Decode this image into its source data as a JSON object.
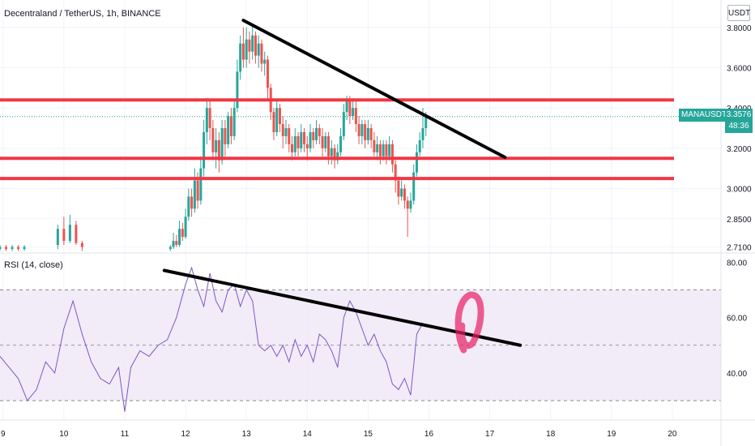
{
  "header": {
    "pair_title": "Decentraland / TetherUS, 1h, BINANCE",
    "currency": "USDT"
  },
  "rsi_panel": {
    "title": "RSI (14, close)"
  },
  "price_tag": {
    "ticker": "MANAUSDT",
    "price": "3.3576",
    "countdown": "48:36"
  },
  "colors": {
    "bull": "#26a69a",
    "bear": "#ef5350",
    "level_line": "#f23645",
    "trendline": "#000000",
    "rsi_line": "#7e57c2",
    "rsi_band": "#ede7f6",
    "marker": "#e91e63"
  },
  "chart_data": [
    {
      "type": "candlestick",
      "title": "Decentraland / TetherUS, 1h, BINANCE",
      "x_ticks": [
        "9",
        "10",
        "11",
        "12",
        "13",
        "14",
        "15",
        "16",
        "17",
        "18",
        "19",
        "20"
      ],
      "y_ticks": [
        "2.7100",
        "2.8500",
        "3.0000",
        "3.2000",
        "3.4000",
        "3.6000",
        "3.8000"
      ],
      "ylim": [
        2.68,
        3.92
      ],
      "xlim": [
        8.95,
        20.8
      ],
      "current_price": 3.3576,
      "support_resistance_levels": [
        3.44,
        3.15,
        3.05
      ],
      "trendline": {
        "from": [
          12.95,
          3.835
        ],
        "to": [
          17.25,
          3.155
        ]
      },
      "candles": [
        [
          8.95,
          2.7,
          2.71,
          2.69,
          2.72
        ],
        [
          9.05,
          2.71,
          2.7,
          2.69,
          2.72
        ],
        [
          9.15,
          2.7,
          2.71,
          2.69,
          2.72
        ],
        [
          9.25,
          2.71,
          2.7,
          2.69,
          2.72
        ],
        [
          9.35,
          2.7,
          2.71,
          2.69,
          2.72
        ],
        [
          9.9,
          2.72,
          2.8,
          2.7,
          2.82
        ],
        [
          10.0,
          2.8,
          2.74,
          2.72,
          2.86
        ],
        [
          10.1,
          2.74,
          2.82,
          2.73,
          2.87
        ],
        [
          10.2,
          2.82,
          2.73,
          2.72,
          2.84
        ],
        [
          10.3,
          2.73,
          2.71,
          2.69,
          2.74
        ],
        [
          11.75,
          2.7,
          2.71,
          2.69,
          2.72
        ],
        [
          11.8,
          2.71,
          2.74,
          2.7,
          2.78
        ],
        [
          11.85,
          2.74,
          2.72,
          2.71,
          2.77
        ],
        [
          11.9,
          2.72,
          2.8,
          2.71,
          2.84
        ],
        [
          11.95,
          2.8,
          2.76,
          2.74,
          2.83
        ],
        [
          12.0,
          2.76,
          2.86,
          2.75,
          2.9
        ],
        [
          12.05,
          2.86,
          2.96,
          2.84,
          3.0
        ],
        [
          12.1,
          2.96,
          2.9,
          2.86,
          3.0
        ],
        [
          12.15,
          2.9,
          3.04,
          2.88,
          3.1
        ],
        [
          12.2,
          3.04,
          2.94,
          2.9,
          3.08
        ],
        [
          12.25,
          2.94,
          3.1,
          2.92,
          3.16
        ],
        [
          12.3,
          3.1,
          3.28,
          3.06,
          3.34
        ],
        [
          12.35,
          3.28,
          3.4,
          3.22,
          3.45
        ],
        [
          12.4,
          3.4,
          3.3,
          3.24,
          3.44
        ],
        [
          12.45,
          3.3,
          3.18,
          3.14,
          3.34
        ],
        [
          12.5,
          3.18,
          3.24,
          3.1,
          3.3
        ],
        [
          12.55,
          3.24,
          3.14,
          3.08,
          3.28
        ],
        [
          12.6,
          3.14,
          3.3,
          3.12,
          3.34
        ],
        [
          12.65,
          3.3,
          3.22,
          3.16,
          3.34
        ],
        [
          12.7,
          3.22,
          3.36,
          3.2,
          3.38
        ],
        [
          12.75,
          3.36,
          3.26,
          3.22,
          3.4
        ],
        [
          12.8,
          3.26,
          3.4,
          3.24,
          3.44
        ],
        [
          12.85,
          3.4,
          3.58,
          3.38,
          3.64
        ],
        [
          12.9,
          3.58,
          3.72,
          3.54,
          3.76
        ],
        [
          12.95,
          3.72,
          3.64,
          3.6,
          3.8
        ],
        [
          13.0,
          3.64,
          3.74,
          3.6,
          3.8
        ],
        [
          13.05,
          3.74,
          3.68,
          3.62,
          3.78
        ],
        [
          13.1,
          3.68,
          3.76,
          3.64,
          3.82
        ],
        [
          13.15,
          3.76,
          3.66,
          3.62,
          3.78
        ],
        [
          13.2,
          3.66,
          3.72,
          3.6,
          3.76
        ],
        [
          13.25,
          3.72,
          3.62,
          3.58,
          3.74
        ],
        [
          13.3,
          3.62,
          3.64,
          3.56,
          3.68
        ],
        [
          13.35,
          3.64,
          3.5,
          3.44,
          3.66
        ],
        [
          13.4,
          3.5,
          3.38,
          3.34,
          3.52
        ],
        [
          13.45,
          3.38,
          3.28,
          3.24,
          3.4
        ],
        [
          13.5,
          3.28,
          3.4,
          3.26,
          3.44
        ],
        [
          13.55,
          3.4,
          3.32,
          3.28,
          3.42
        ],
        [
          13.6,
          3.32,
          3.26,
          3.2,
          3.36
        ],
        [
          13.65,
          3.26,
          3.3,
          3.22,
          3.34
        ],
        [
          13.7,
          3.3,
          3.22,
          3.18,
          3.32
        ],
        [
          13.75,
          3.22,
          3.18,
          3.14,
          3.26
        ],
        [
          13.8,
          3.18,
          3.26,
          3.16,
          3.3
        ],
        [
          13.85,
          3.26,
          3.2,
          3.16,
          3.28
        ],
        [
          13.9,
          3.2,
          3.28,
          3.18,
          3.32
        ],
        [
          13.95,
          3.28,
          3.22,
          3.18,
          3.3
        ],
        [
          14.0,
          3.22,
          3.2,
          3.14,
          3.26
        ],
        [
          14.05,
          3.2,
          3.28,
          3.18,
          3.32
        ],
        [
          14.1,
          3.28,
          3.24,
          3.2,
          3.3
        ],
        [
          14.15,
          3.24,
          3.3,
          3.22,
          3.34
        ],
        [
          14.2,
          3.3,
          3.26,
          3.22,
          3.32
        ],
        [
          14.25,
          3.26,
          3.2,
          3.16,
          3.3
        ],
        [
          14.3,
          3.2,
          3.26,
          3.18,
          3.28
        ],
        [
          14.35,
          3.26,
          3.16,
          3.12,
          3.28
        ],
        [
          14.4,
          3.16,
          3.2,
          3.12,
          3.24
        ],
        [
          14.45,
          3.2,
          3.14,
          3.1,
          3.22
        ],
        [
          14.5,
          3.14,
          3.18,
          3.12,
          3.22
        ],
        [
          14.55,
          3.18,
          3.26,
          3.16,
          3.3
        ],
        [
          14.6,
          3.26,
          3.38,
          3.24,
          3.42
        ],
        [
          14.65,
          3.38,
          3.44,
          3.34,
          3.46
        ],
        [
          14.7,
          3.44,
          3.36,
          3.32,
          3.46
        ],
        [
          14.75,
          3.36,
          3.4,
          3.34,
          3.44
        ],
        [
          14.8,
          3.4,
          3.32,
          3.28,
          3.44
        ],
        [
          14.85,
          3.32,
          3.26,
          3.22,
          3.36
        ],
        [
          14.9,
          3.26,
          3.32,
          3.22,
          3.34
        ],
        [
          14.95,
          3.32,
          3.24,
          3.2,
          3.34
        ],
        [
          15.0,
          3.24,
          3.3,
          3.22,
          3.34
        ],
        [
          15.05,
          3.3,
          3.24,
          3.2,
          3.32
        ],
        [
          15.1,
          3.24,
          3.18,
          3.16,
          3.28
        ],
        [
          15.15,
          3.18,
          3.22,
          3.14,
          3.26
        ],
        [
          15.2,
          3.22,
          3.16,
          3.12,
          3.24
        ],
        [
          15.25,
          3.16,
          3.22,
          3.14,
          3.24
        ],
        [
          15.3,
          3.22,
          3.16,
          3.12,
          3.24
        ],
        [
          15.35,
          3.16,
          3.22,
          3.14,
          3.26
        ],
        [
          15.4,
          3.22,
          3.12,
          3.08,
          3.24
        ],
        [
          15.45,
          3.12,
          3.04,
          2.98,
          3.14
        ],
        [
          15.5,
          3.04,
          2.96,
          2.92,
          3.06
        ],
        [
          15.55,
          2.96,
          3.0,
          2.94,
          3.04
        ],
        [
          15.6,
          3.0,
          2.94,
          2.9,
          3.02
        ],
        [
          15.65,
          2.94,
          2.9,
          2.76,
          2.96
        ],
        [
          15.7,
          2.9,
          2.94,
          2.88,
          2.98
        ],
        [
          15.75,
          2.94,
          3.08,
          2.92,
          3.12
        ],
        [
          15.8,
          3.08,
          3.18,
          3.06,
          3.22
        ],
        [
          15.85,
          3.18,
          3.24,
          3.16,
          3.28
        ],
        [
          15.9,
          3.24,
          3.3,
          3.2,
          3.4
        ],
        [
          15.95,
          3.3,
          3.36,
          3.26,
          3.38
        ]
      ]
    },
    {
      "type": "line",
      "title": "RSI (14, close)",
      "y_ticks": [
        "40.00",
        "60.00",
        "80.00"
      ],
      "ylim": [
        23,
        83
      ],
      "band": [
        30,
        70
      ],
      "midline": 50,
      "series": [
        {
          "x": [
            8.95,
            9.1,
            9.25,
            9.4,
            9.55,
            9.7,
            9.85,
            10.0,
            10.15,
            10.3,
            10.45,
            10.6,
            10.75,
            10.9,
            11.0,
            11.1,
            11.25,
            11.4,
            11.55,
            11.7,
            11.85,
            12.0,
            12.1,
            12.2,
            12.3,
            12.4,
            12.5,
            12.6,
            12.7,
            12.8,
            12.9,
            13.0,
            13.1,
            13.2,
            13.3,
            13.4,
            13.5,
            13.6,
            13.7,
            13.8,
            13.9,
            14.0,
            14.1,
            14.2,
            14.3,
            14.4,
            14.5,
            14.6,
            14.7,
            14.8,
            14.9,
            15.0,
            15.1,
            15.2,
            15.3,
            15.4,
            15.5,
            15.6,
            15.7,
            15.8,
            15.9
          ],
          "y": [
            46,
            42,
            38,
            30,
            34,
            44,
            40,
            56,
            66,
            54,
            44,
            38,
            36,
            42,
            26,
            42,
            48,
            46,
            50,
            52,
            60,
            72,
            78,
            70,
            64,
            76,
            66,
            62,
            70,
            72,
            64,
            70,
            66,
            50,
            48,
            50,
            46,
            50,
            44,
            52,
            46,
            50,
            44,
            54,
            52,
            48,
            42,
            60,
            66,
            62,
            56,
            50,
            54,
            48,
            44,
            36,
            34,
            38,
            32,
            54,
            58
          ]
        }
      ],
      "trendline": {
        "from": [
          11.65,
          77
        ],
        "to": [
          17.5,
          50
        ]
      },
      "annotation": "hand-drawn circle marking RSI breakout above trendline"
    }
  ]
}
